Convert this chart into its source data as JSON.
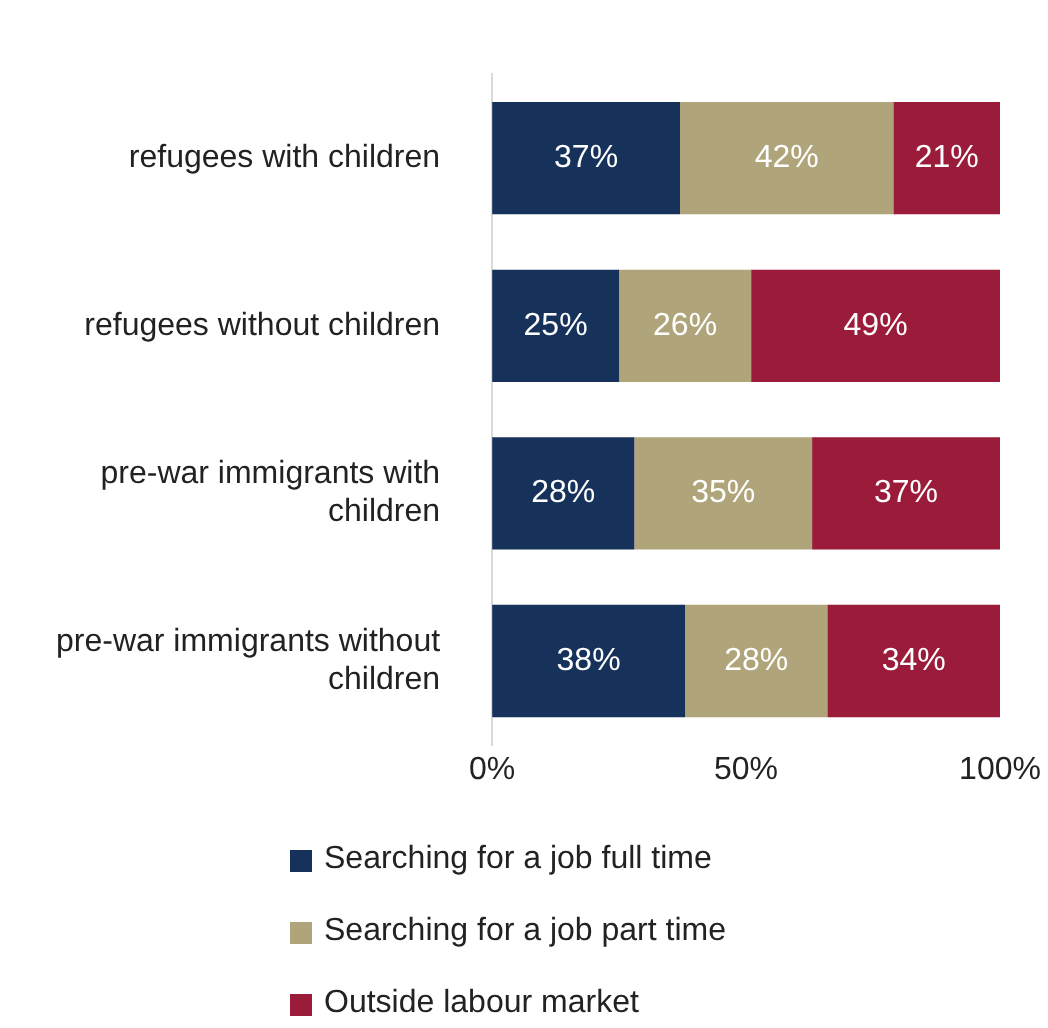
{
  "chart_data": {
    "type": "bar",
    "orientation": "horizontal",
    "stacked": true,
    "categories": [
      "refugees with children",
      "refugees without children",
      "pre-war immigrants with children",
      "pre-war immigrants without children"
    ],
    "series": [
      {
        "name": "Searching for a job full time",
        "color": "#17325a",
        "values": [
          37,
          25,
          28,
          38
        ],
        "value_labels": [
          "37%",
          "25%",
          "28%",
          "38%"
        ]
      },
      {
        "name": "Searching for a job part time",
        "color": "#b0a57a",
        "values": [
          42,
          26,
          35,
          28
        ],
        "value_labels": [
          "42%",
          "26%",
          "35%",
          "28%"
        ]
      },
      {
        "name": "Outside labour market",
        "color": "#9b1b3b",
        "values": [
          21,
          49,
          37,
          34
        ],
        "value_labels": [
          "21%",
          "49%",
          "37%",
          "34%"
        ]
      }
    ],
    "xlim": [
      0,
      100
    ],
    "xticks": [
      {
        "value": 0,
        "label": "0%"
      },
      {
        "value": 50,
        "label": "50%"
      },
      {
        "value": 100,
        "label": "100%"
      }
    ],
    "grid": false,
    "legend": "bottom"
  }
}
